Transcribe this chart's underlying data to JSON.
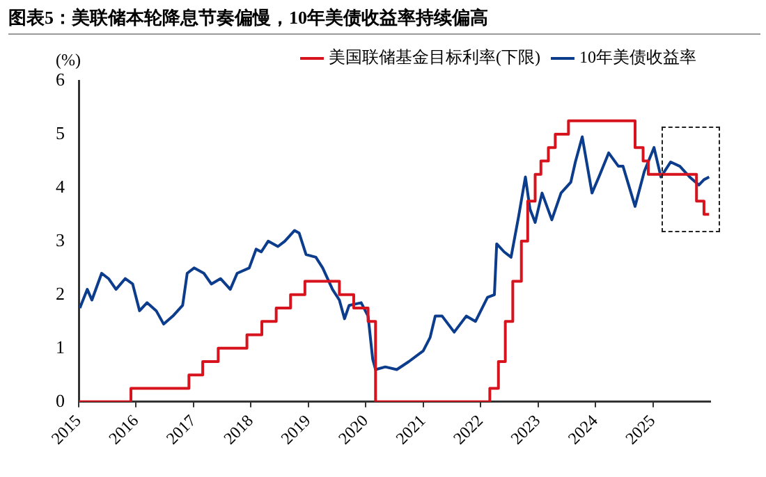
{
  "chart_data": {
    "type": "line",
    "title": "图表5：美联储本轮降息节奏偏慢，10年美债收益率持续偏高",
    "ylabel": "(%)",
    "xlim": [
      2015,
      2026
    ],
    "xticks": [
      {
        "value": 2015,
        "label": "2015"
      },
      {
        "value": 2016,
        "label": "2016"
      },
      {
        "value": 2017,
        "label": "2017"
      },
      {
        "value": 2018,
        "label": "2018"
      },
      {
        "value": 2019,
        "label": "2019"
      },
      {
        "value": 2020,
        "label": "2020"
      },
      {
        "value": 2021,
        "label": "2021"
      },
      {
        "value": 2022,
        "label": "2022"
      },
      {
        "value": 2023,
        "label": "2023"
      },
      {
        "value": 2024,
        "label": "2024"
      },
      {
        "value": 2025,
        "label": "2025"
      }
    ],
    "ylim": [
      0,
      6
    ],
    "yticks": [
      0,
      1,
      2,
      3,
      4,
      5,
      6
    ],
    "grid": false,
    "legend": "top right",
    "marker": "none",
    "series": [
      {
        "name": "美国联储基金目标利率(下限)",
        "type": "step",
        "color": "#d7141e",
        "x": [
          2015.0,
          2015.91,
          2016.92,
          2017.16,
          2017.43,
          2017.93,
          2018.19,
          2018.44,
          2018.69,
          2018.94,
          2019.54,
          2019.79,
          2020.04,
          2020.17,
          2022.16,
          2022.31,
          2022.43,
          2022.56,
          2022.71,
          2022.82,
          2022.95,
          2023.05,
          2023.18,
          2023.3,
          2023.53,
          2024.69,
          2024.83,
          2024.92,
          2025.76,
          2025.89,
          2025.98
        ],
        "values": [
          0,
          0.25,
          0.5,
          0.75,
          1.0,
          1.25,
          1.5,
          1.75,
          2.0,
          2.25,
          2.0,
          1.75,
          1.5,
          0,
          0.25,
          0.75,
          1.5,
          2.25,
          3.0,
          3.75,
          4.25,
          4.5,
          4.75,
          5.0,
          5.25,
          4.75,
          4.5,
          4.25,
          3.75,
          3.5,
          3.5
        ]
      },
      {
        "name": "10年美债收益率",
        "color": "#0c3c8c",
        "x": [
          2015.02,
          2015.15,
          2015.23,
          2015.4,
          2015.52,
          2015.65,
          2015.81,
          2015.94,
          2016.06,
          2016.19,
          2016.35,
          2016.48,
          2016.64,
          2016.81,
          2016.89,
          2017.01,
          2017.18,
          2017.31,
          2017.47,
          2017.64,
          2017.76,
          2017.97,
          2018.09,
          2018.18,
          2018.3,
          2018.47,
          2018.59,
          2018.76,
          2018.84,
          2018.96,
          2019.13,
          2019.25,
          2019.42,
          2019.54,
          2019.63,
          2019.71,
          2019.92,
          2020.04,
          2020.12,
          2020.17,
          2020.34,
          2020.54,
          2020.75,
          2021.0,
          2021.12,
          2021.21,
          2021.33,
          2021.54,
          2021.75,
          2021.91,
          2022.12,
          2022.24,
          2022.28,
          2022.41,
          2022.53,
          2022.66,
          2022.78,
          2022.86,
          2022.95,
          2023.07,
          2023.24,
          2023.4,
          2023.57,
          2023.65,
          2023.77,
          2023.94,
          2024.06,
          2024.23,
          2024.4,
          2024.48,
          2024.69,
          2024.85,
          2025.02,
          2025.14,
          2025.31,
          2025.47,
          2025.64,
          2025.8,
          2025.89,
          2025.98
        ],
        "values": [
          1.75,
          2.1,
          1.9,
          2.4,
          2.3,
          2.1,
          2.3,
          2.2,
          1.7,
          1.85,
          1.7,
          1.45,
          1.6,
          1.8,
          2.4,
          2.5,
          2.4,
          2.2,
          2.3,
          2.1,
          2.4,
          2.5,
          2.85,
          2.8,
          3.0,
          2.9,
          3.0,
          3.2,
          3.15,
          2.75,
          2.7,
          2.5,
          2.1,
          1.9,
          1.55,
          1.8,
          1.85,
          1.6,
          0.8,
          0.6,
          0.65,
          0.6,
          0.75,
          0.95,
          1.2,
          1.6,
          1.6,
          1.3,
          1.6,
          1.5,
          1.95,
          2.0,
          2.95,
          2.8,
          2.7,
          3.45,
          4.2,
          3.6,
          3.35,
          3.9,
          3.4,
          3.9,
          4.1,
          4.48,
          4.95,
          3.9,
          4.2,
          4.65,
          4.4,
          4.4,
          3.65,
          4.3,
          4.75,
          4.2,
          4.48,
          4.4,
          4.2,
          4.05,
          4.15,
          4.2
        ]
      }
    ]
  }
}
